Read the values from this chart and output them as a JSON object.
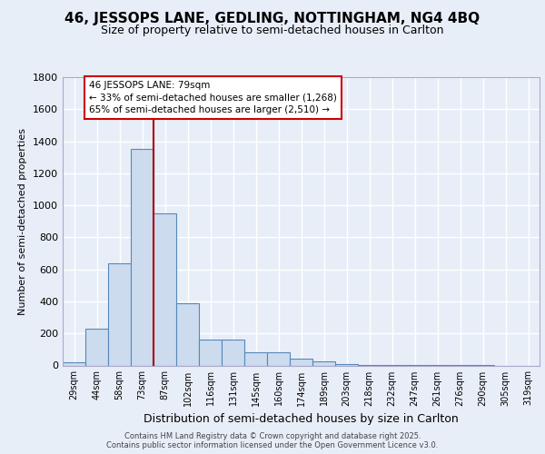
{
  "title1": "46, JESSOPS LANE, GEDLING, NOTTINGHAM, NG4 4BQ",
  "title2": "Size of property relative to semi-detached houses in Carlton",
  "xlabel": "Distribution of semi-detached houses by size in Carlton",
  "ylabel": "Number of semi-detached properties",
  "bar_labels": [
    "29sqm",
    "44sqm",
    "58sqm",
    "73sqm",
    "87sqm",
    "102sqm",
    "116sqm",
    "131sqm",
    "145sqm",
    "160sqm",
    "174sqm",
    "189sqm",
    "203sqm",
    "218sqm",
    "232sqm",
    "247sqm",
    "261sqm",
    "276sqm",
    "290sqm",
    "305sqm",
    "319sqm"
  ],
  "bar_values": [
    20,
    230,
    640,
    1350,
    950,
    390,
    160,
    160,
    85,
    85,
    40,
    25,
    10,
    5,
    5,
    2,
    2,
    1,
    1,
    0,
    0
  ],
  "bar_color": "#ccdcee",
  "bar_edge_color": "#5588bb",
  "background_color": "#e8eef8",
  "grid_color": "#ffffff",
  "vline_color": "#aa0000",
  "annotation_line1": "46 JESSOPS LANE: 79sqm",
  "annotation_line2": "← 33% of semi-detached houses are smaller (1,268)",
  "annotation_line3": "65% of semi-detached houses are larger (2,510) →",
  "annotation_box_color": "#ffffff",
  "annotation_box_edge": "#cc0000",
  "ylim": [
    0,
    1800
  ],
  "yticks": [
    0,
    200,
    400,
    600,
    800,
    1000,
    1200,
    1400,
    1600,
    1800
  ],
  "footer1": "Contains HM Land Registry data © Crown copyright and database right 2025.",
  "footer2": "Contains public sector information licensed under the Open Government Licence v3.0."
}
